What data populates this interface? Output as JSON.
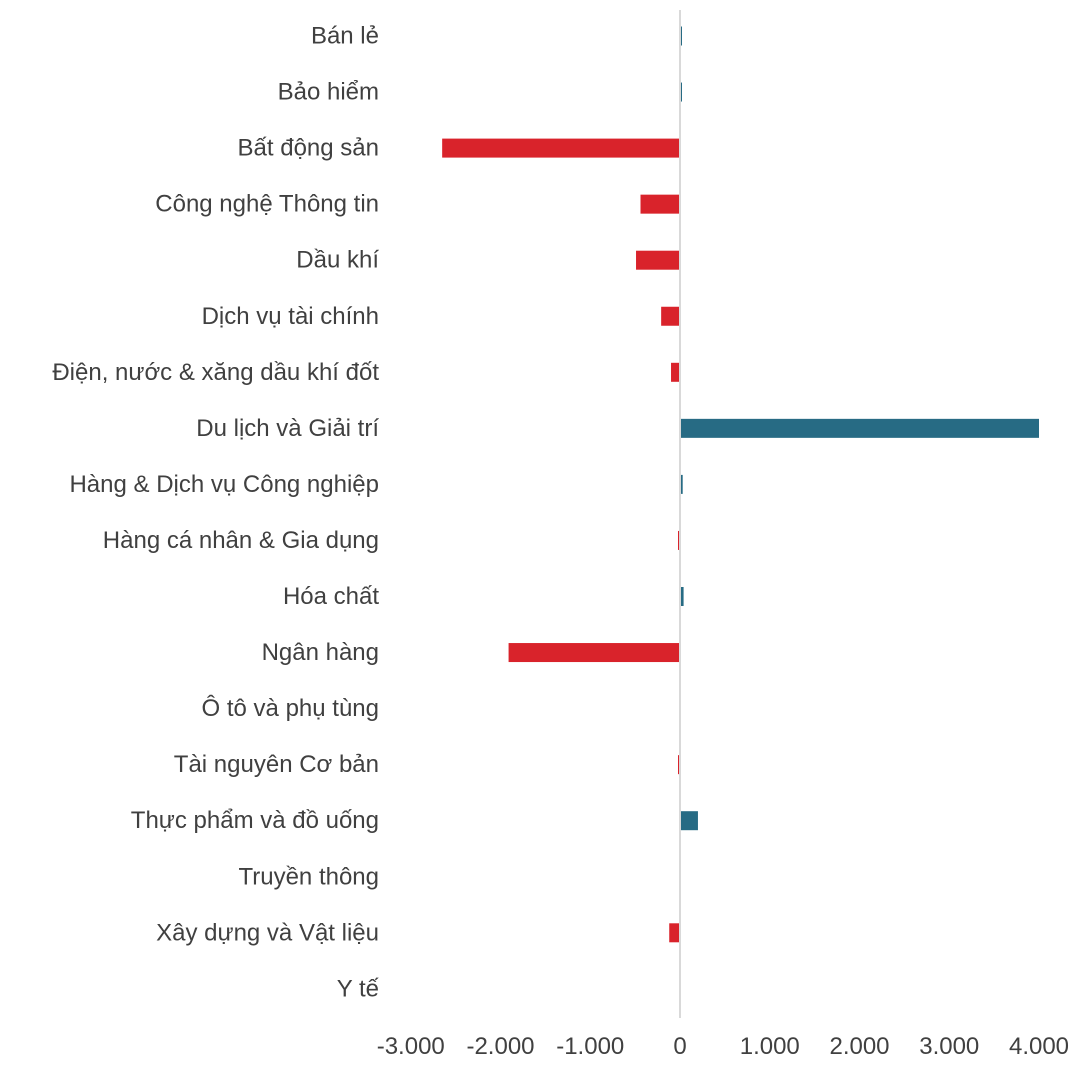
{
  "chart_data": {
    "type": "bar",
    "orientation": "horizontal",
    "categories": [
      "Bán lẻ",
      "Bảo hiểm",
      "Bất động sản",
      "Công nghệ Thông tin",
      "Dầu khí",
      "Dịch vụ tài chính",
      "Điện, nước & xăng dầu khí đốt",
      "Du lịch và Giải trí",
      "Hàng & Dịch vụ Công nghiệp",
      "Hàng cá nhân & Gia dụng",
      "Hóa chất",
      "Ngân hàng",
      "Ô tô và phụ tùng",
      "Tài nguyên Cơ bản",
      "Thực phẩm và đồ uống",
      "Truyền thông",
      "Xây dựng và Vật liệu",
      "Y tế"
    ],
    "values": [
      5,
      5,
      -2650,
      -440,
      -490,
      -210,
      -100,
      4000,
      30,
      -10,
      40,
      -1910,
      0,
      -15,
      200,
      0,
      -120,
      0
    ],
    "xlim": [
      -3000,
      4000
    ],
    "xticks": [
      -3000,
      -2000,
      -1000,
      0,
      1000,
      2000,
      3000,
      4000
    ],
    "xtick_labels": [
      "-3.000",
      "-2.000",
      "-1.000",
      "0",
      "1.000",
      "2.000",
      "3.000",
      "4.000"
    ],
    "title": "",
    "xlabel": "",
    "ylabel": "",
    "grid": false,
    "legend": "none",
    "colors": {
      "positive": "#276b84",
      "negative": "#d9232b",
      "axis": "#d9d9d9",
      "text": "#404040"
    }
  }
}
